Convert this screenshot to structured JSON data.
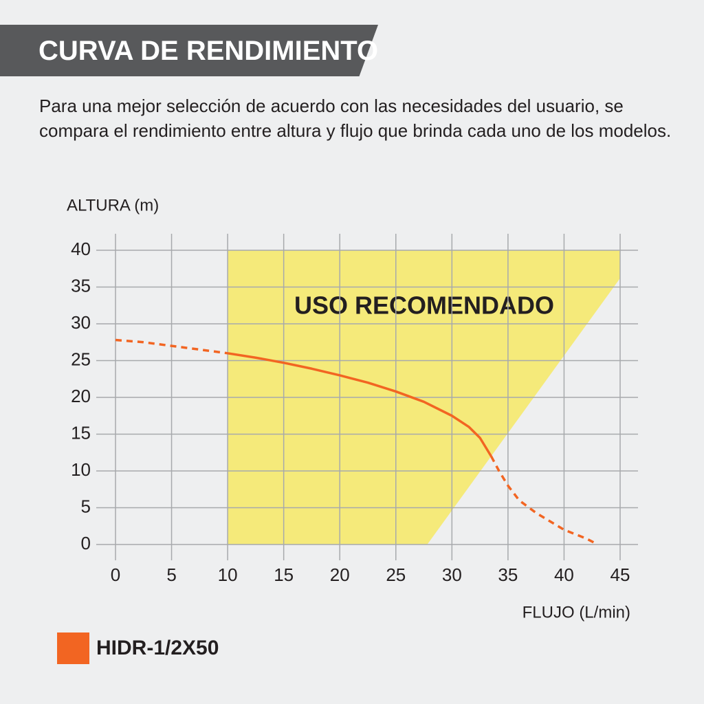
{
  "header": {
    "title": "CURVA DE RENDIMIENTO",
    "description": "Para una mejor selección de acuerdo con las necesidades del usuario, se compara el rendimiento entre altura y flujo que brinda cada uno de los modelos."
  },
  "chart_data": {
    "type": "line",
    "y_label": "ALTURA (m)",
    "x_label": "FLUJO (L/min)",
    "xlim": [
      0,
      45
    ],
    "ylim": [
      0,
      40
    ],
    "xticks": [
      0,
      5,
      10,
      15,
      20,
      25,
      30,
      35,
      40,
      45
    ],
    "yticks": [
      0,
      5,
      10,
      15,
      20,
      25,
      30,
      35,
      40
    ],
    "grid": true,
    "region": {
      "label": "USO RECOMENDADO",
      "color": "#f5ea7a",
      "x": [
        10,
        10,
        45,
        45,
        27.8
      ],
      "y": [
        0,
        40,
        40,
        36.2,
        0
      ]
    },
    "series": [
      {
        "name": "HIDR-1/2X50",
        "color": "#f26522",
        "segments": [
          {
            "dashed": true,
            "x": [
              0,
              2.5,
              5,
              7.5,
              10
            ],
            "values": [
              27.8,
              27.5,
              27.0,
              26.5,
              26.0
            ]
          },
          {
            "dashed": false,
            "x": [
              10,
              12.5,
              15,
              17.5,
              20,
              22.5,
              25,
              27.5,
              30,
              31.5,
              32.5,
              33.5
            ],
            "values": [
              26.0,
              25.4,
              24.7,
              23.9,
              23.0,
              22.0,
              20.8,
              19.4,
              17.5,
              16.0,
              14.5,
              12.0
            ]
          },
          {
            "dashed": true,
            "x": [
              33.5,
              34.2,
              35,
              36,
              37.5,
              40,
              42,
              43
            ],
            "values": [
              12.0,
              10.0,
              8.0,
              6.0,
              4.3,
              2.0,
              0.8,
              0
            ]
          }
        ]
      }
    ]
  }
}
